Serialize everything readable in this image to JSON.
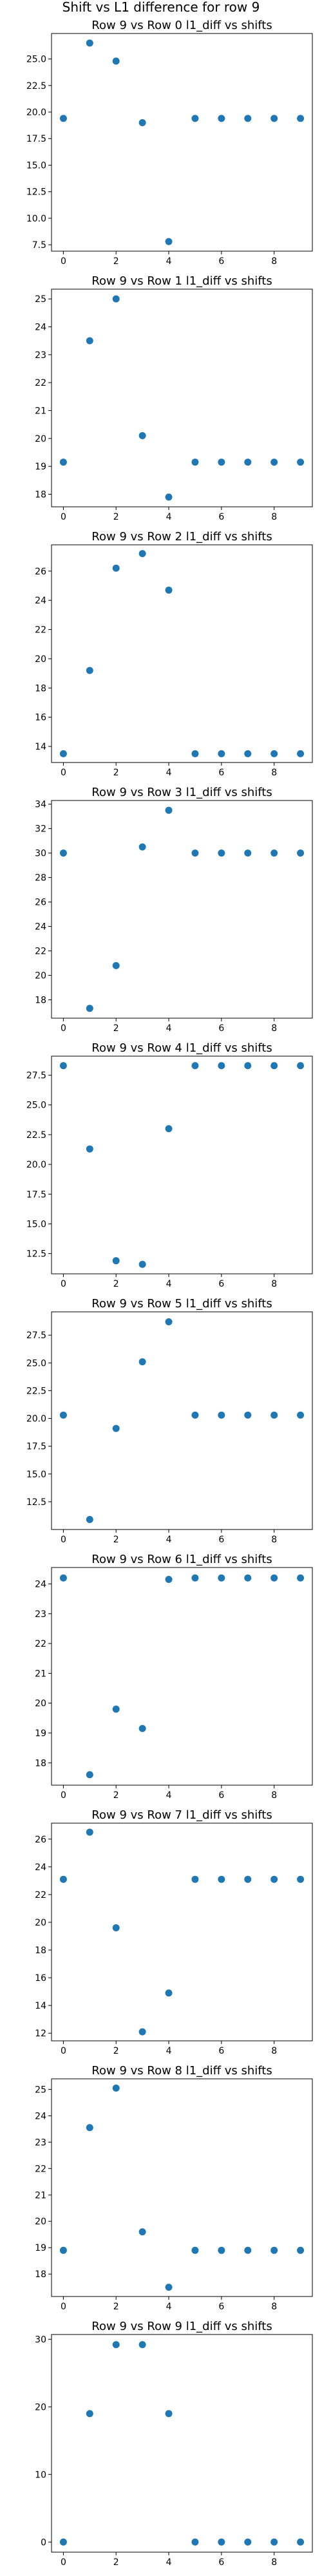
{
  "figure": {
    "title": "Shift vs L1 difference for row 9"
  },
  "chart_data": [
    {
      "type": "scatter",
      "title": "Row 9 vs Row 0 l1_diff vs shifts",
      "x": [
        0,
        1,
        2,
        3,
        4,
        5,
        6,
        7,
        8,
        9
      ],
      "y": [
        19.4,
        26.5,
        24.8,
        19.0,
        7.8,
        19.4,
        19.4,
        19.4,
        19.4,
        19.4
      ],
      "xticks": [
        0,
        2,
        4,
        6,
        8
      ],
      "xtick_labels": [
        "0",
        "2",
        "4",
        "6",
        "8"
      ],
      "yticks": [
        7.5,
        10.0,
        12.5,
        15.0,
        17.5,
        20.0,
        22.5,
        25.0
      ],
      "ytick_labels": [
        "7.5",
        "10.0",
        "12.5",
        "15.0",
        "17.5",
        "20.0",
        "22.5",
        "25.0"
      ],
      "xlim": [
        -0.45,
        9.45
      ],
      "ylim": [
        6.9,
        27.4
      ],
      "grid": false
    },
    {
      "type": "scatter",
      "title": "Row 9 vs Row 1 l1_diff vs shifts",
      "x": [
        0,
        1,
        2,
        3,
        4,
        5,
        6,
        7,
        8,
        9
      ],
      "y": [
        19.15,
        23.5,
        25.0,
        20.1,
        17.9,
        19.15,
        19.15,
        19.15,
        19.15,
        19.15
      ],
      "xticks": [
        0,
        2,
        4,
        6,
        8
      ],
      "xtick_labels": [
        "0",
        "2",
        "4",
        "6",
        "8"
      ],
      "yticks": [
        18,
        19,
        20,
        21,
        22,
        23,
        24,
        25
      ],
      "ytick_labels": [
        "18",
        "19",
        "20",
        "21",
        "22",
        "23",
        "24",
        "25"
      ],
      "xlim": [
        -0.45,
        9.45
      ],
      "ylim": [
        17.55,
        25.35
      ],
      "grid": false
    },
    {
      "type": "scatter",
      "title": "Row 9 vs Row 2 l1_diff vs shifts",
      "x": [
        0,
        1,
        2,
        3,
        4,
        5,
        6,
        7,
        8,
        9
      ],
      "y": [
        13.5,
        19.2,
        26.2,
        27.2,
        24.7,
        13.5,
        13.5,
        13.5,
        13.5,
        13.5
      ],
      "xticks": [
        0,
        2,
        4,
        6,
        8
      ],
      "xtick_labels": [
        "0",
        "2",
        "4",
        "6",
        "8"
      ],
      "yticks": [
        14,
        16,
        18,
        20,
        22,
        24,
        26
      ],
      "ytick_labels": [
        "14",
        "16",
        "18",
        "20",
        "22",
        "24",
        "26"
      ],
      "xlim": [
        -0.45,
        9.45
      ],
      "ylim": [
        12.9,
        27.8
      ],
      "grid": false
    },
    {
      "type": "scatter",
      "title": "Row 9 vs Row 3 l1_diff vs shifts",
      "x": [
        0,
        1,
        2,
        3,
        4,
        5,
        6,
        7,
        8,
        9
      ],
      "y": [
        30.0,
        17.3,
        20.8,
        30.5,
        33.5,
        30.0,
        30.0,
        30.0,
        30.0,
        30.0
      ],
      "xticks": [
        0,
        2,
        4,
        6,
        8
      ],
      "xtick_labels": [
        "0",
        "2",
        "4",
        "6",
        "8"
      ],
      "yticks": [
        18,
        20,
        22,
        24,
        26,
        28,
        30,
        32,
        34
      ],
      "ytick_labels": [
        "18",
        "20",
        "22",
        "24",
        "26",
        "28",
        "30",
        "32",
        "34"
      ],
      "xlim": [
        -0.45,
        9.45
      ],
      "ylim": [
        16.5,
        34.3
      ],
      "grid": false
    },
    {
      "type": "scatter",
      "title": "Row 9 vs Row 4 l1_diff vs shifts",
      "x": [
        0,
        1,
        2,
        3,
        4,
        5,
        6,
        7,
        8,
        9
      ],
      "y": [
        28.3,
        21.3,
        11.9,
        11.6,
        23.0,
        28.3,
        28.3,
        28.3,
        28.3,
        28.3
      ],
      "xticks": [
        0,
        2,
        4,
        6,
        8
      ],
      "xtick_labels": [
        "0",
        "2",
        "4",
        "6",
        "8"
      ],
      "yticks": [
        12.5,
        15.0,
        17.5,
        20.0,
        22.5,
        25.0,
        27.5
      ],
      "ytick_labels": [
        "12.5",
        "15.0",
        "17.5",
        "20.0",
        "22.5",
        "25.0",
        "27.5"
      ],
      "xlim": [
        -0.45,
        9.45
      ],
      "ylim": [
        10.8,
        29.1
      ],
      "grid": false
    },
    {
      "type": "scatter",
      "title": "Row 9 vs Row 5 l1_diff vs shifts",
      "x": [
        0,
        1,
        2,
        3,
        4,
        5,
        6,
        7,
        8,
        9
      ],
      "y": [
        20.3,
        10.9,
        19.1,
        25.1,
        28.7,
        20.3,
        20.3,
        20.3,
        20.3,
        20.3
      ],
      "xticks": [
        0,
        2,
        4,
        6,
        8
      ],
      "xtick_labels": [
        "0",
        "2",
        "4",
        "6",
        "8"
      ],
      "yticks": [
        12.5,
        15.0,
        17.5,
        20.0,
        22.5,
        25.0,
        27.5
      ],
      "ytick_labels": [
        "12.5",
        "15.0",
        "17.5",
        "20.0",
        "22.5",
        "25.0",
        "27.5"
      ],
      "xlim": [
        -0.45,
        9.45
      ],
      "ylim": [
        10.0,
        29.6
      ],
      "grid": false
    },
    {
      "type": "scatter",
      "title": "Row 9 vs Row 6 l1_diff vs shifts",
      "x": [
        0,
        1,
        2,
        3,
        4,
        5,
        6,
        7,
        8,
        9
      ],
      "y": [
        24.2,
        17.6,
        19.8,
        19.15,
        24.15,
        24.2,
        24.2,
        24.2,
        24.2,
        24.2
      ],
      "xticks": [
        0,
        2,
        4,
        6,
        8
      ],
      "xtick_labels": [
        "0",
        "2",
        "4",
        "6",
        "8"
      ],
      "yticks": [
        18,
        19,
        20,
        21,
        22,
        23,
        24
      ],
      "ytick_labels": [
        "18",
        "19",
        "20",
        "21",
        "22",
        "23",
        "24"
      ],
      "xlim": [
        -0.45,
        9.45
      ],
      "ylim": [
        17.25,
        24.55
      ],
      "grid": false
    },
    {
      "type": "scatter",
      "title": "Row 9 vs Row 7 l1_diff vs shifts",
      "x": [
        0,
        1,
        2,
        3,
        4,
        5,
        6,
        7,
        8,
        9
      ],
      "y": [
        23.1,
        26.5,
        19.6,
        12.1,
        14.9,
        23.1,
        23.1,
        23.1,
        23.1,
        23.1
      ],
      "xticks": [
        0,
        2,
        4,
        6,
        8
      ],
      "xtick_labels": [
        "0",
        "2",
        "4",
        "6",
        "8"
      ],
      "yticks": [
        12,
        14,
        16,
        18,
        20,
        22,
        24,
        26
      ],
      "ytick_labels": [
        "12",
        "14",
        "16",
        "18",
        "20",
        "22",
        "24",
        "26"
      ],
      "xlim": [
        -0.45,
        9.45
      ],
      "ylim": [
        11.45,
        27.15
      ],
      "grid": false
    },
    {
      "type": "scatter",
      "title": "Row 9 vs Row 8 l1_diff vs shifts",
      "x": [
        0,
        1,
        2,
        3,
        4,
        5,
        6,
        7,
        8,
        9
      ],
      "y": [
        18.9,
        23.55,
        25.05,
        19.6,
        17.5,
        18.9,
        18.9,
        18.9,
        18.9,
        18.9
      ],
      "xticks": [
        0,
        2,
        4,
        6,
        8
      ],
      "xtick_labels": [
        "0",
        "2",
        "4",
        "6",
        "8"
      ],
      "yticks": [
        18,
        19,
        20,
        21,
        22,
        23,
        24,
        25
      ],
      "ytick_labels": [
        "18",
        "19",
        "20",
        "21",
        "22",
        "23",
        "24",
        "25"
      ],
      "xlim": [
        -0.45,
        9.45
      ],
      "ylim": [
        17.15,
        25.4
      ],
      "grid": false
    },
    {
      "type": "scatter",
      "title": "Row 9 vs Row 9 l1_diff vs shifts",
      "x": [
        0,
        1,
        2,
        3,
        4,
        5,
        6,
        7,
        8,
        9
      ],
      "y": [
        0,
        19.0,
        29.2,
        29.2,
        19.0,
        0,
        0,
        0,
        0,
        0
      ],
      "xticks": [
        0,
        2,
        4,
        6,
        8
      ],
      "xtick_labels": [
        "0",
        "2",
        "4",
        "6",
        "8"
      ],
      "yticks": [
        0,
        10,
        20,
        30
      ],
      "ytick_labels": [
        "0",
        "10",
        "20",
        "30"
      ],
      "xlim": [
        -0.45,
        9.45
      ],
      "ylim": [
        -1.5,
        30.7
      ],
      "grid": false
    }
  ]
}
